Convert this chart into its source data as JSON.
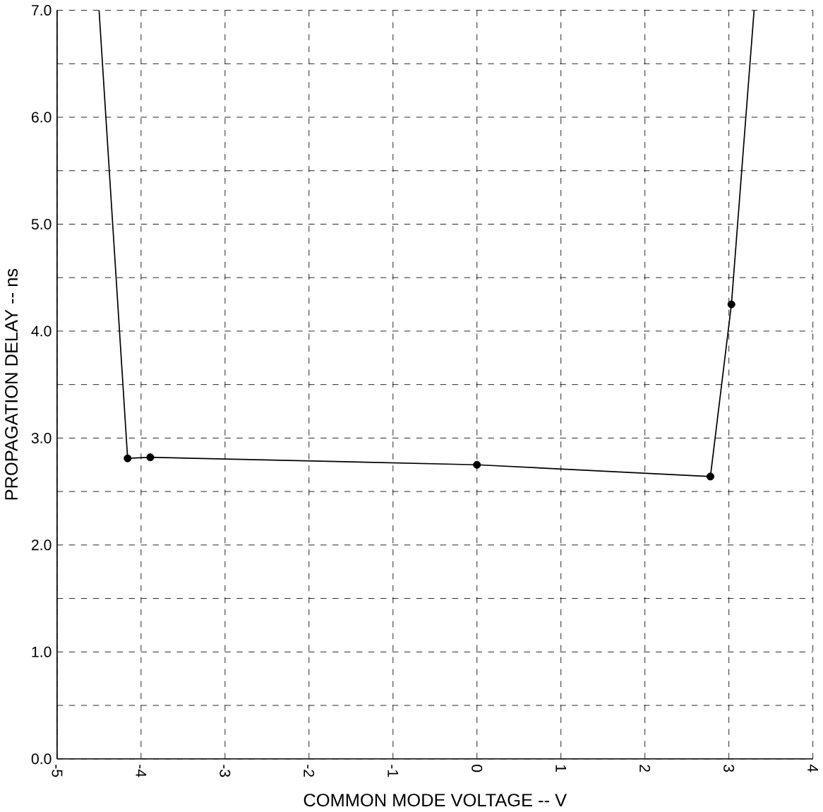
{
  "chart_data": {
    "type": "line",
    "xlabel": "COMMON MODE VOLTAGE  --  V",
    "ylabel": "PROPAGATION DELAY  --  ns",
    "xlim": [
      -5,
      4
    ],
    "ylim": [
      0,
      7
    ],
    "xticks": [
      -5,
      -4,
      -3,
      -2,
      -1,
      0,
      1,
      2,
      3,
      4
    ],
    "yticks": [
      {
        "value": 0,
        "label": "0.0"
      },
      {
        "value": 0.5,
        "label": null
      },
      {
        "value": 1,
        "label": "1.0"
      },
      {
        "value": 1.5,
        "label": null
      },
      {
        "value": 2,
        "label": "2.0"
      },
      {
        "value": 2.5,
        "label": null
      },
      {
        "value": 3,
        "label": "3.0"
      },
      {
        "value": 3.5,
        "label": null
      },
      {
        "value": 4,
        "label": "4.0"
      },
      {
        "value": 4.5,
        "label": null
      },
      {
        "value": 5,
        "label": "5.0"
      },
      {
        "value": 5.5,
        "label": null
      },
      {
        "value": 6,
        "label": "6.0"
      },
      {
        "value": 6.5,
        "label": null
      },
      {
        "value": 7,
        "label": "7.0"
      }
    ],
    "grid": true,
    "series": [
      {
        "color": "#000000",
        "marker": "none",
        "x": [
          -4.5,
          -4.16,
          -3.89,
          0,
          2.78,
          3.03,
          3.3
        ],
        "values": [
          7.0,
          2.81,
          2.82,
          2.75,
          2.64,
          4.25,
          7.0
        ]
      },
      {
        "type": "scatter",
        "color": "#000000",
        "marker": "circle",
        "x": [
          -4.16,
          -3.89,
          0,
          2.78,
          3.03
        ],
        "values": [
          2.81,
          2.82,
          2.75,
          2.64,
          4.25
        ]
      }
    ]
  }
}
